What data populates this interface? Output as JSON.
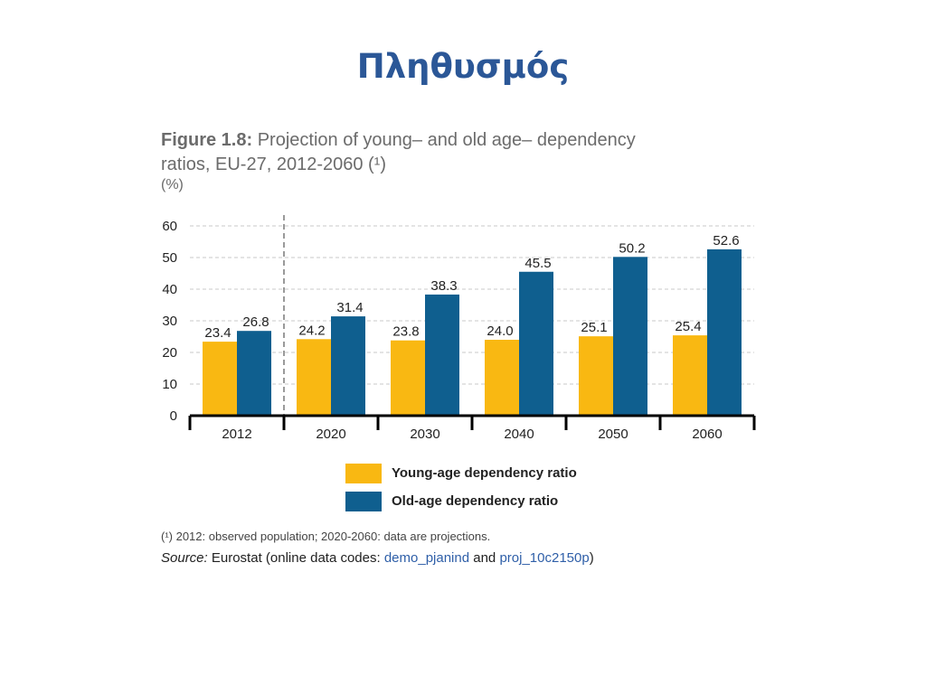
{
  "slide": {
    "title": "Πληθυσμός"
  },
  "figure": {
    "label": "Figure 1.8:",
    "title_rest": " Projection of young– and old age– dependency",
    "title_line2": "ratios, EU-27, 2012-2060 (¹)",
    "unit": "(%)"
  },
  "footnote": "(¹)  2012: observed population; 2020-2060: data are projections.",
  "source": {
    "prefix": "Source:",
    "text1": " Eurostat (online data codes: ",
    "code1": "demo_pjanind",
    "text2": " and ",
    "code2": "proj_10c2150p",
    "text3": ")"
  },
  "colors": {
    "young": "#f9b812",
    "old": "#0f5f8f",
    "title": "#2b5797"
  },
  "chart_data": {
    "type": "bar",
    "categories": [
      "2012",
      "2020",
      "2030",
      "2040",
      "2050",
      "2060"
    ],
    "series": [
      {
        "name": "Young-age dependency ratio",
        "values": [
          23.4,
          24.2,
          23.8,
          24.0,
          25.1,
          25.4
        ],
        "labels": [
          "23.4",
          "24.2",
          "23.8",
          "24.0",
          "25.1",
          "25.4"
        ]
      },
      {
        "name": "Old-age dependency ratio",
        "values": [
          26.8,
          31.4,
          38.3,
          45.5,
          50.2,
          52.6
        ],
        "labels": [
          "26.8",
          "31.4",
          "38.3",
          "45.5",
          "50.2",
          "52.6"
        ]
      }
    ],
    "ylim": [
      0,
      60
    ],
    "yticks": [
      0,
      10,
      20,
      30,
      40,
      50,
      60
    ],
    "grid": true,
    "legend_position": "bottom",
    "separator_after": "2012"
  }
}
